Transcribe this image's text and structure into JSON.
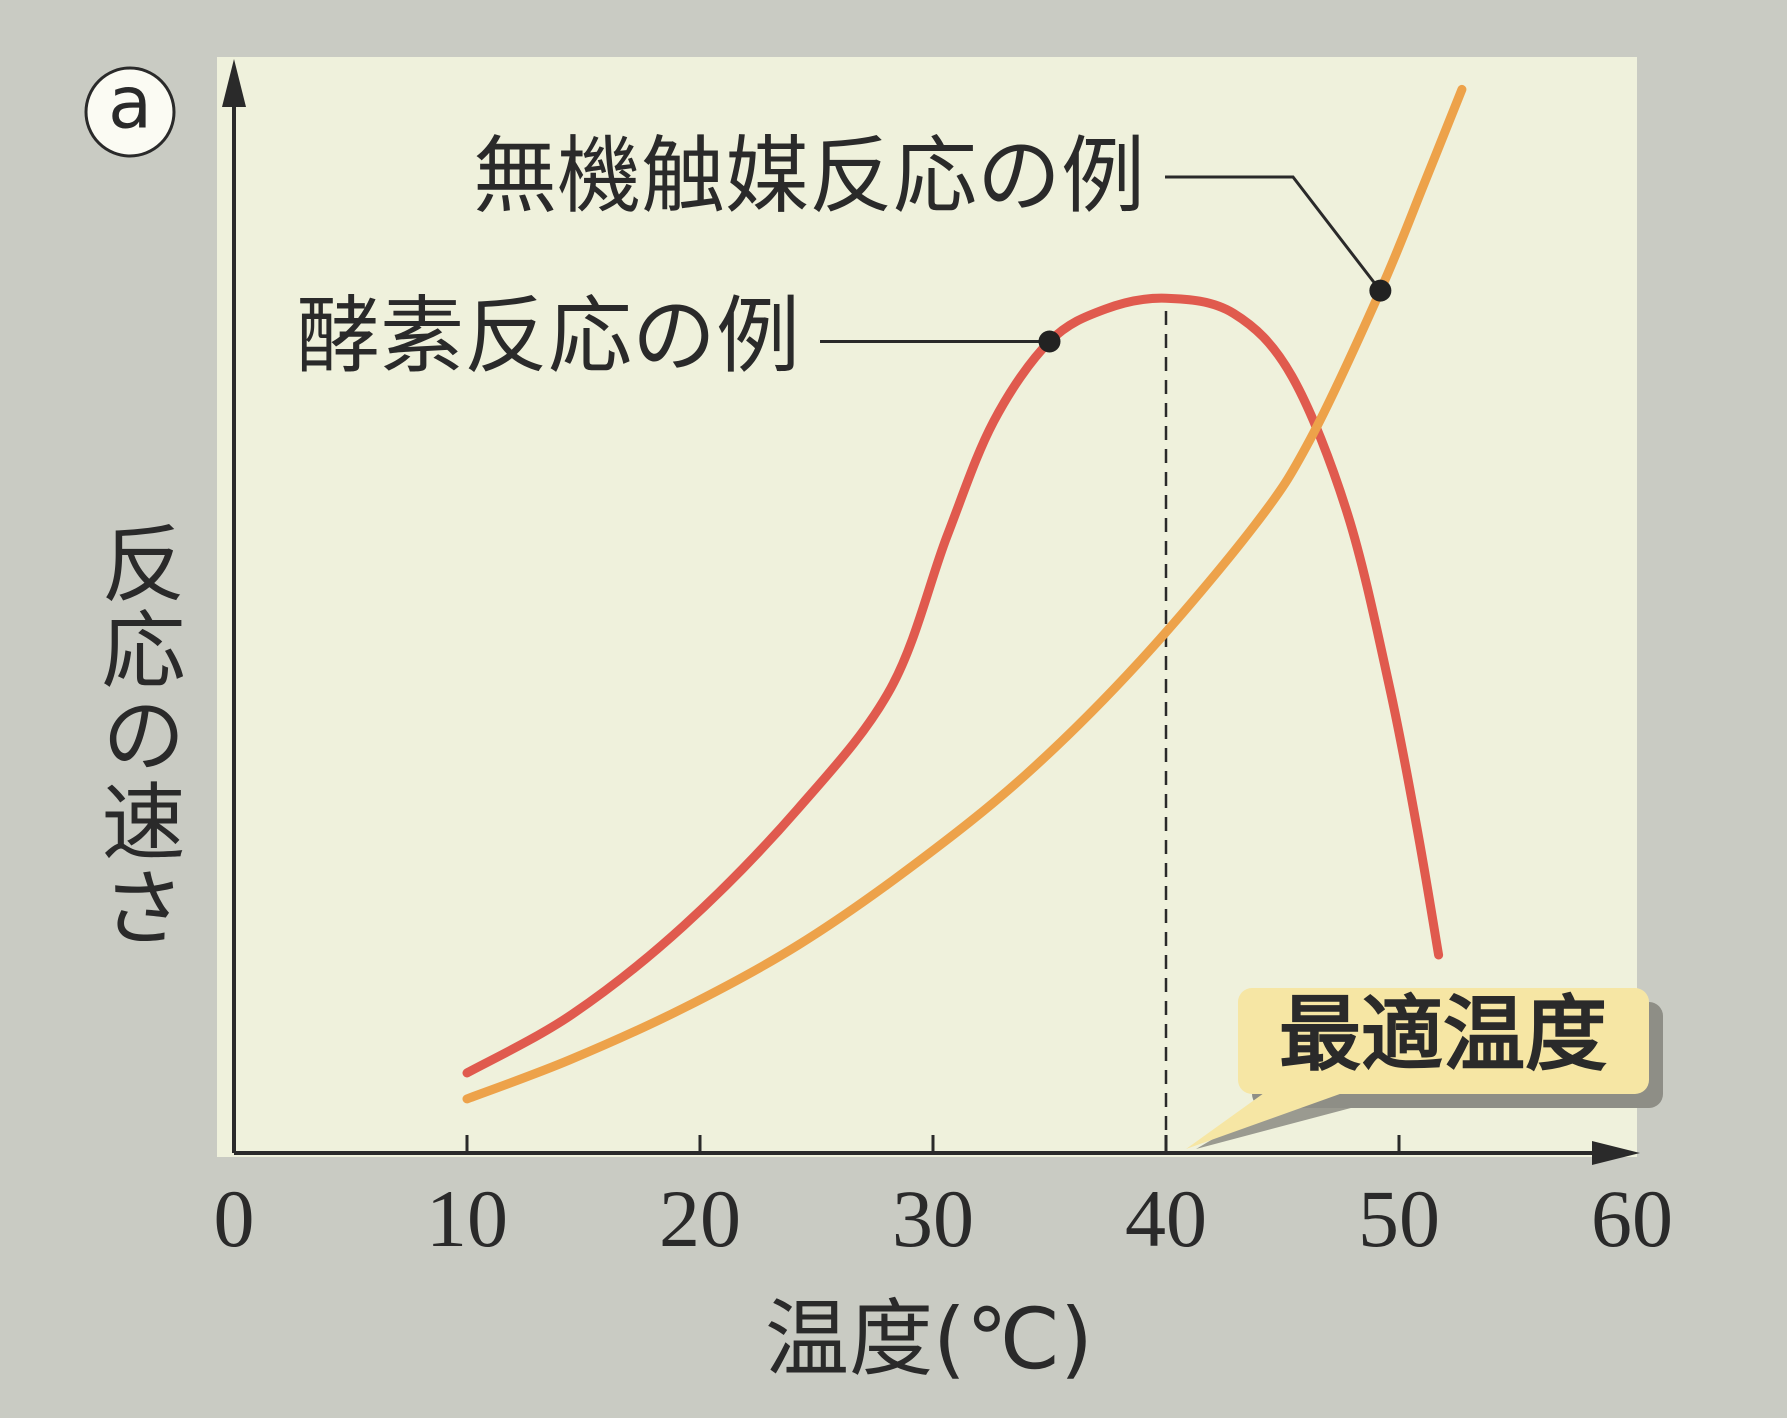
{
  "chart_data": {
    "type": "line",
    "panel_label": "a",
    "xlabel": "温度(℃)",
    "ylabel": "反応の速さ",
    "xlim": [
      0,
      60
    ],
    "xticks": [
      0,
      10,
      20,
      30,
      40,
      50,
      60
    ],
    "ylim": [
      0,
      100
    ],
    "series": [
      {
        "name": "酵素反応の例",
        "color": "#e05a4e",
        "x": [
          10,
          14.5,
          19.3,
          24.2,
          28.2,
          30.6,
          32.6,
          35,
          37.4,
          40,
          42.9,
          45.4,
          47.8,
          49.6,
          50.8,
          51.7
        ],
        "values": [
          7.4,
          12.8,
          21,
          31.8,
          43,
          57,
          67.6,
          75,
          78,
          79,
          77.6,
          71.8,
          59,
          43,
          29.7,
          18.3
        ]
      },
      {
        "name": "無機触媒反応の例",
        "color": "#eda24a",
        "x": [
          10,
          14.4,
          19.3,
          24.2,
          29.1,
          34,
          38.9,
          43.8,
          46.2,
          49.2,
          51.1,
          52.7
        ],
        "values": [
          5,
          8.6,
          13.4,
          19.2,
          26.5,
          35,
          45.5,
          58,
          66,
          79.7,
          89.7,
          98.3
        ]
      }
    ],
    "annotations": [
      {
        "text": "最適温度",
        "x": 40
      }
    ]
  }
}
